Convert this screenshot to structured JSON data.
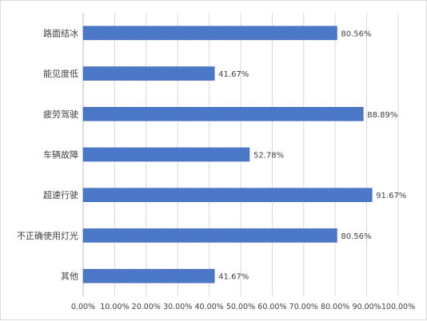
{
  "chart_data": {
    "type": "bar",
    "orientation": "horizontal",
    "categories": [
      "路面结冰",
      "能见度低",
      "疲劳驾驶",
      "车辆故障",
      "超速行驶",
      "不正确使用灯光",
      "其他"
    ],
    "values": [
      80.56,
      41.67,
      88.89,
      52.78,
      91.67,
      80.56,
      41.67
    ],
    "value_labels": [
      "80.56%",
      "41.67%",
      "88.89%",
      "52.78%",
      "91.67%",
      "80.56%",
      "41.67%"
    ],
    "xlim": [
      0,
      100
    ],
    "x_ticks": [
      "0.00%",
      "10.00%",
      "20.00%",
      "30.00%",
      "40.00%",
      "50.00%",
      "60.00%",
      "70.00%",
      "80.00%",
      "90.00%",
      "100.00%"
    ],
    "grid": true,
    "legend": "none",
    "bar_color": "#4472c4",
    "title": "",
    "xlabel": "",
    "ylabel": ""
  }
}
